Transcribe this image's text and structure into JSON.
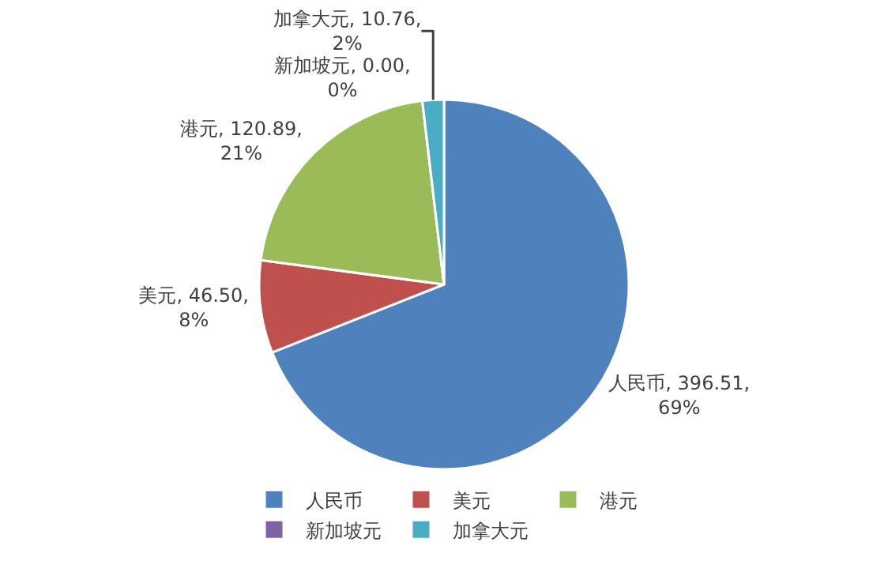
{
  "chart_data": {
    "type": "pie",
    "categories": [
      "人民币",
      "美元",
      "港元",
      "新加坡元",
      "加拿大元"
    ],
    "values": [
      396.51,
      46.5,
      120.89,
      0.0,
      10.76
    ],
    "colors": [
      "#4f81bd",
      "#c0504d",
      "#9bbb59",
      "#8064a2",
      "#4bacc6"
    ],
    "value_labels": [
      "人民币, 396.51, 69%",
      "美元, 46.50, 8%",
      "港元, 120.89, 21%",
      "新加坡元, 0.00, 0%",
      "加拿大元, 10.76, 2%"
    ],
    "legend": "bottom"
  }
}
